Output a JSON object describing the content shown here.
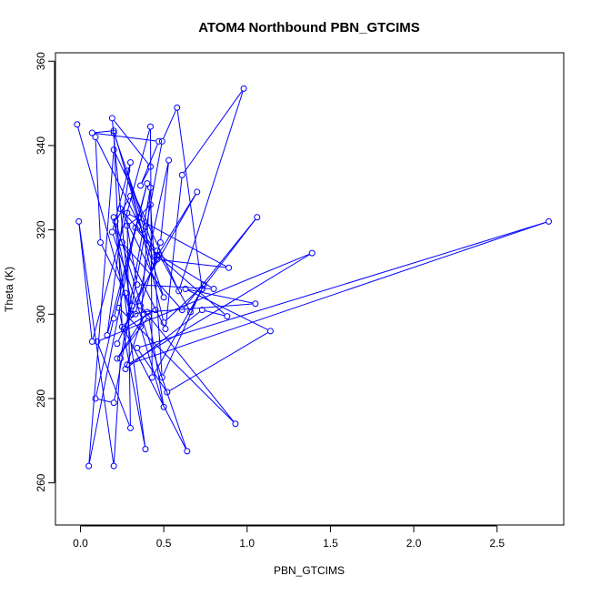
{
  "chart_data": {
    "type": "line",
    "title": "ATOM4 Northbound PBN_GTCIMS",
    "xlabel": "PBN_GTCIMS",
    "ylabel": "Theta (K)",
    "xlim": [
      -0.15,
      2.9
    ],
    "ylim": [
      250,
      362
    ],
    "xticks": [
      "0.0",
      "0.5",
      "1.0",
      "1.5",
      "2.0",
      "2.5"
    ],
    "xtick_values": [
      0,
      0.5,
      1,
      1.5,
      2,
      2.5
    ],
    "yticks": [
      "260",
      "280",
      "300",
      "320",
      "340",
      "360"
    ],
    "ytick_values": [
      260,
      280,
      300,
      320,
      340,
      360
    ],
    "grid": false,
    "legend": "none",
    "series": [
      {
        "color": "#0000ff",
        "marker": "open-circle",
        "x": [
          -0.02,
          0.3,
          0.19,
          0.42,
          0.36,
          0.47,
          0.07,
          0.2,
          0.37,
          0.09,
          0.12,
          0.27,
          0.31,
          0.45,
          0.26,
          0.64,
          0.19,
          0.3,
          0.16,
          0.4,
          0.2,
          0.09,
          0.2,
          0.49,
          0.58,
          0.73,
          0.66,
          0.46,
          0.24,
          0.5,
          0.3,
          0.21,
          0.38,
          0.27,
          0.73,
          0.88,
          0.46,
          0.33,
          0.05,
          0.2,
          0.59,
          0.98,
          0.61,
          0.51,
          0.25,
          0.61,
          1.06,
          0.73,
          0.43,
          0.42,
          0.07,
          -0.01,
          0.2,
          0.24,
          0.42,
          0.36,
          0.5,
          0.41,
          0.22,
          0.4,
          1.05,
          0.63,
          1.14,
          0.52,
          0.34,
          2.81,
          0.28,
          1.39,
          0.1,
          0.3,
          0.28,
          0.89,
          0.46,
          0.2,
          0.25,
          0.33,
          0.53,
          0.48,
          0.36,
          0.93,
          0.23,
          0.39,
          0.2,
          0.31,
          0.7,
          0.44,
          0.28,
          0.5,
          0.74,
          0.49,
          0.42,
          0.35,
          0.28,
          0.34,
          0.8,
          0.47,
          0.22
        ],
        "y": [
          345,
          300,
          346.5,
          335,
          330.5,
          341,
          343,
          343.5,
          320,
          342,
          317,
          305,
          300,
          301,
          296.5,
          267.5,
          319.5,
          336,
          295,
          331,
          299,
          280,
          279,
          341,
          349,
          306,
          300.5,
          315,
          325,
          304,
          328,
          322,
          300,
          287,
          301,
          299.5,
          314,
          320.5,
          264,
          339,
          305.5,
          353.5,
          333,
          296.5,
          317,
          301,
          323,
          306,
          285,
          344.5,
          293.5,
          322,
          264,
          289.5,
          330,
          297,
          278,
          299.5,
          289.5,
          300.5,
          302.5,
          306,
          296,
          281.5,
          292,
          322,
          288,
          314.5,
          293.5,
          273,
          324,
          311,
          313,
          343,
          297,
          300,
          336.5,
          317,
          302,
          274,
          301.5,
          268,
          323,
          302,
          329,
          312.5,
          334,
          298,
          307,
          285,
          326,
          323,
          321,
          307,
          306,
          314,
          293
        ]
      }
    ]
  }
}
